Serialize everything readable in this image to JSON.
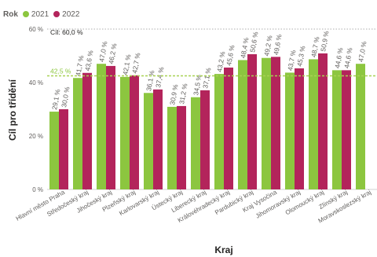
{
  "legend": {
    "title": "Rok"
  },
  "colors": {
    "s2021": "#8CC63F",
    "s2022": "#B3245B",
    "target_line": "#C8C8C8",
    "avg_line": "#A8D253"
  },
  "chart_data": {
    "type": "bar",
    "xlabel": "Kraj",
    "ylabel": "Cíl pro třídění",
    "ylim": [
      0,
      60
    ],
    "yticks": [
      "0 %",
      "20 %",
      "40 %",
      "60 %"
    ],
    "ytick_values": [
      0,
      20,
      40,
      60
    ],
    "categories": [
      "Hlavní město Praha",
      "Středočeský kraj",
      "Jihočeský kraj",
      "Plzeňský kraj",
      "Karlovarský kraj",
      "Ústecký kraj",
      "Liberecký kraj",
      "Královéhradecký kraj",
      "Pardubický kraj",
      "Kraj Vysočina",
      "Jihomoravský kraj",
      "Olomoucký kraj",
      "Zlínský kraj",
      "Moravskoslezský kraj"
    ],
    "series": [
      {
        "name": "2021",
        "values": [
          29.1,
          41.7,
          47.0,
          42.1,
          36.1,
          30.9,
          34.5,
          43.2,
          48.4,
          49.2,
          43.7,
          48.7,
          44.6,
          47.0
        ],
        "labels": [
          "29,1 %",
          "41,7 %",
          "47,0 %",
          "42,1 %",
          "36,1 %",
          "30,9 %",
          "34,5 %",
          "43,2 %",
          "48,4 %",
          "49,2 %",
          "43,7 %",
          "48,7 %",
          "44,6 %",
          "47,0 %"
        ]
      },
      {
        "name": "2022",
        "values": [
          30.0,
          43.6,
          46.2,
          42.7,
          37.4,
          31.2,
          37.1,
          45.6,
          50.6,
          49.6,
          45.3,
          50.9,
          44.6,
          null
        ],
        "labels": [
          "30,0 %",
          "43,6 %",
          "46,2 %",
          "42,7 %",
          "37,4 %",
          "31,2 %",
          "37,1 %",
          "45,6 %",
          "50,6 %",
          "49,6 %",
          "45,3 %",
          "50,9 %",
          "44,6 %",
          ""
        ]
      }
    ],
    "reference_lines": [
      {
        "value": 60.0,
        "label": "Cíl: 60,0 %",
        "style": "dotted",
        "color": "#C8C8C8"
      },
      {
        "value": 42.5,
        "label": "42,5 %",
        "style": "dashed",
        "color": "#A8D253"
      }
    ],
    "grid": false,
    "legend_position": "top-left"
  }
}
